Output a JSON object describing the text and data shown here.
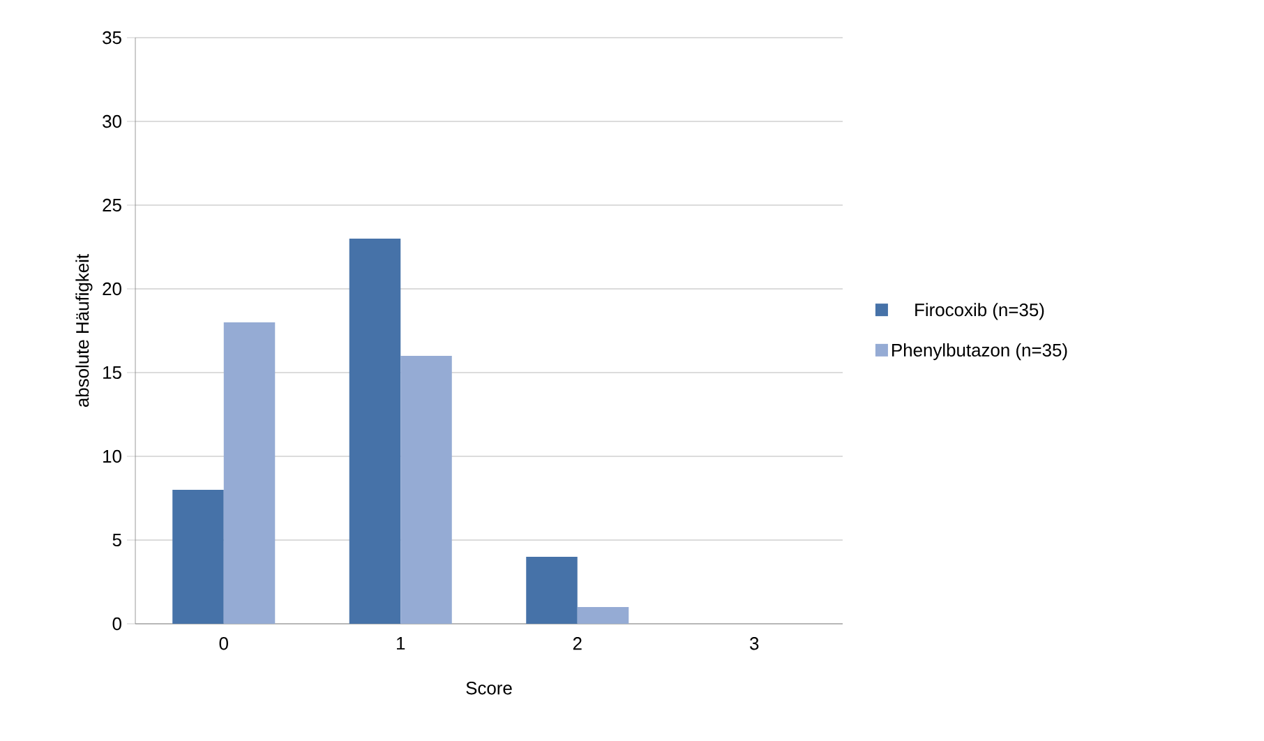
{
  "chart_data": {
    "type": "bar",
    "xlabel": "Score",
    "ylabel": "absolute Häufigkeit",
    "categories": [
      "0",
      "1",
      "2",
      "3"
    ],
    "series": [
      {
        "name": "Firocoxib (n=35)",
        "color": "#4672a8",
        "values": [
          8,
          23,
          4,
          0
        ]
      },
      {
        "name": "Phenylbutazon (n=35)",
        "color": "#95abd4",
        "values": [
          18,
          16,
          1,
          0
        ]
      }
    ],
    "ylim": [
      0,
      35
    ],
    "yticks": [
      0,
      5,
      10,
      15,
      20,
      25,
      30,
      35
    ],
    "grid": "y",
    "legend": "right"
  }
}
